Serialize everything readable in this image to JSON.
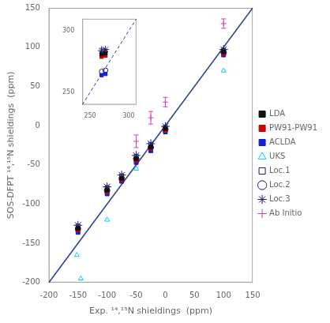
{
  "chart_data": [
    {
      "type": "scatter",
      "xlabel": "Exp. ¹⁴,¹⁵N shieldings  (ppm)",
      "ylabel": "SOS-DFPT ¹⁴,¹⁵N shieldings  (ppm)",
      "xlim": [
        -200,
        150
      ],
      "ylim": [
        -200,
        150
      ],
      "xticks": [
        -200,
        -150,
        -100,
        -50,
        0,
        50,
        100,
        150
      ],
      "yticks": [
        -200,
        -150,
        -100,
        -50,
        0,
        50,
        100,
        150
      ],
      "grid": false,
      "legend": "right",
      "series": [
        {
          "type": "line",
          "color": "#2b3f8c",
          "line_style": "solid",
          "x": [
            -200,
            150
          ],
          "values": [
            -200,
            150
          ]
        },
        {
          "name": "UKS",
          "color": "#00ccff",
          "marker": "triangle-open",
          "x": [
            -152,
            -145,
            -100,
            -50,
            100
          ],
          "values": [
            -165,
            -195,
            -120,
            -55,
            70
          ]
        },
        {
          "name": "Loc.1",
          "color": "#1a1a6e",
          "marker": "square-open",
          "x": [
            -150,
            -100,
            -75,
            -50,
            -25,
            0,
            100
          ],
          "values": [
            -128,
            -79,
            -64,
            -39,
            -24,
            -2,
            96
          ]
        },
        {
          "name": "Loc.2",
          "color": "#1a1a6e",
          "marker": "circle-open",
          "x": [
            -150,
            -100,
            -75,
            -50,
            -25,
            0,
            100
          ],
          "values": [
            -132,
            -83,
            -68,
            -43,
            -28,
            -5,
            93
          ]
        },
        {
          "name": "Loc.3",
          "color": "#1a1a6e",
          "marker": "star-open",
          "x": [
            -150,
            -100,
            -75,
            -50,
            -25,
            0,
            100
          ],
          "values": [
            -127,
            -78,
            -63,
            -38,
            -23,
            -1,
            97
          ]
        },
        {
          "name": "Ab Initio",
          "color": "#cc44aa",
          "marker": "plus-open",
          "x": [
            -50,
            -25,
            0,
            100
          ],
          "values": [
            -20,
            10,
            30,
            130
          ],
          "errors": [
            8,
            8,
            6,
            6
          ]
        },
        {
          "name": "LDA",
          "color": "#111111",
          "marker": "square",
          "x": [
            -150,
            -100,
            -75,
            -50,
            -25,
            0,
            100
          ],
          "values": [
            -131,
            -82,
            -67,
            -42,
            -27,
            -4,
            94
          ]
        },
        {
          "name": "PW91-PW91",
          "color": "#cc0000",
          "marker": "square",
          "x": [
            -150,
            -100,
            -75,
            -50,
            -25,
            0,
            100
          ],
          "values": [
            -133,
            -84,
            -69,
            -44,
            -29,
            -6,
            92
          ]
        },
        {
          "name": "ACLDA",
          "color": "#1122cc",
          "marker": "square",
          "x": [
            -150,
            -100,
            -75,
            -50,
            -25,
            0,
            100
          ],
          "values": [
            -136,
            -87,
            -71,
            -47,
            -32,
            -8,
            90
          ]
        }
      ]
    },
    {
      "type": "scatter",
      "xlim": [
        240,
        310
      ],
      "ylim": [
        240,
        310
      ],
      "xticks": [
        250,
        300
      ],
      "yticks": [
        250,
        300
      ],
      "grid": false,
      "series": [
        {
          "type": "line",
          "color": "#2b3f8c",
          "line_style": "dashed",
          "x": [
            240,
            310
          ],
          "values": [
            240,
            310
          ]
        },
        {
          "color": "#111111",
          "marker": "square",
          "x": [
            265,
            270
          ],
          "values": [
            281,
            282
          ]
        },
        {
          "color": "#cc0000",
          "marker": "square",
          "x": [
            265,
            270
          ],
          "values": [
            279,
            280
          ]
        },
        {
          "color": "#1122cc",
          "marker": "square",
          "x": [
            265,
            270
          ],
          "values": [
            264,
            265
          ]
        },
        {
          "color": "#1a1a6e",
          "marker": "square-open",
          "x": [
            265,
            270
          ],
          "values": [
            282,
            283
          ]
        },
        {
          "color": "#1a1a6e",
          "marker": "circle-open",
          "x": [
            265,
            270
          ],
          "values": [
            267,
            268
          ]
        },
        {
          "color": "#1a1a6e",
          "marker": "star-open",
          "x": [
            265,
            270
          ],
          "values": [
            284,
            285
          ]
        },
        {
          "color": "#cc44aa",
          "marker": "plus-open",
          "x": [
            265
          ],
          "values": [
            286
          ]
        }
      ]
    }
  ]
}
